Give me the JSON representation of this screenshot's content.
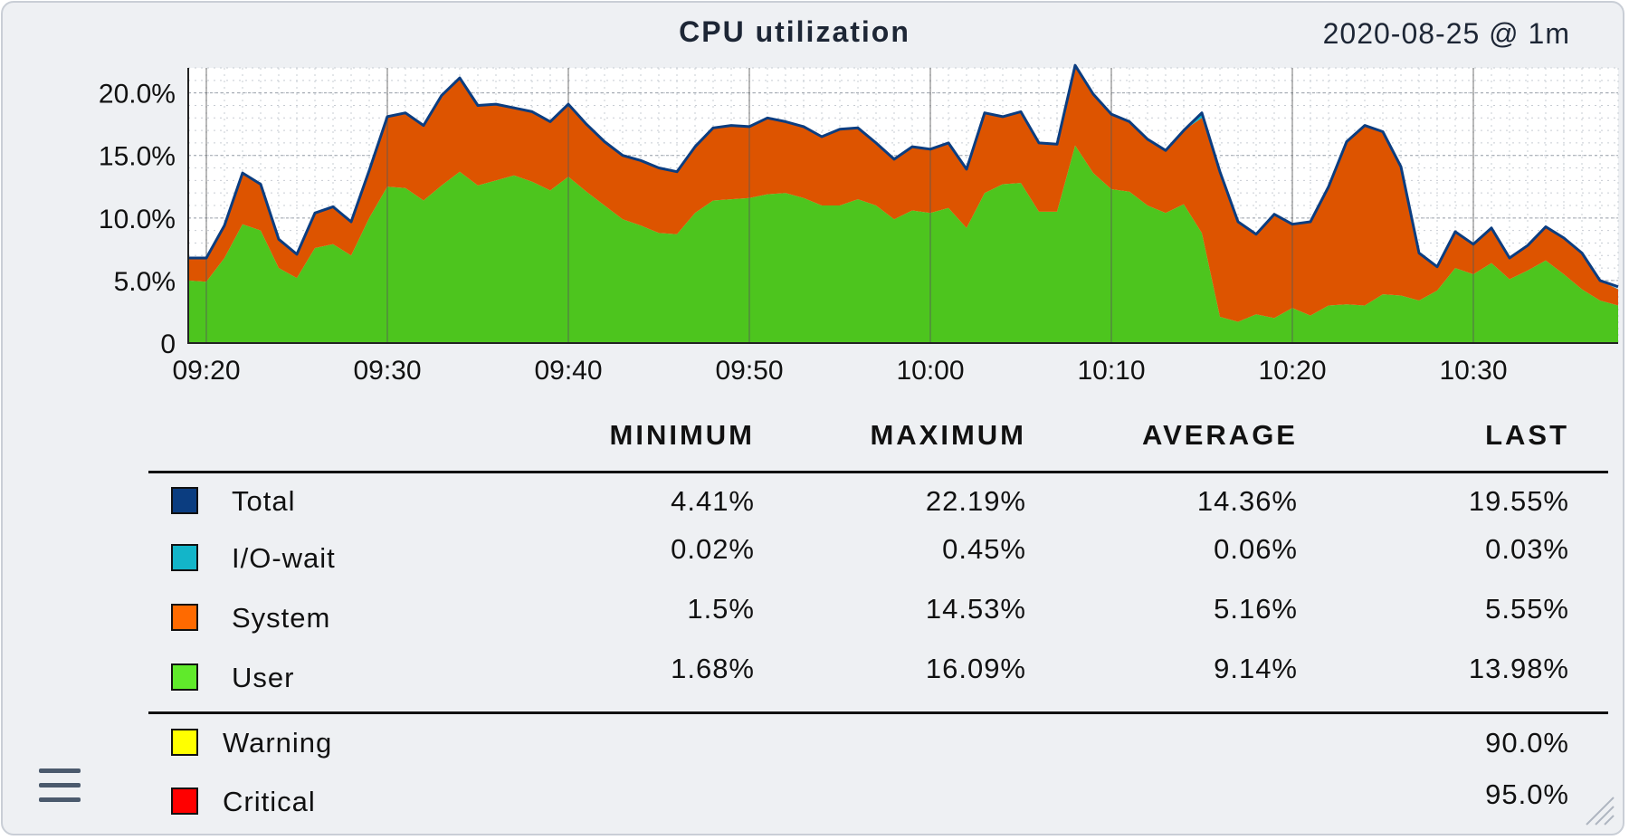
{
  "title": "CPU utilization",
  "timestamp": "2020-08-25 @ 1m",
  "legend": {
    "headers": [
      "MINIMUM",
      "MAXIMUM",
      "AVERAGE",
      "LAST"
    ],
    "rows": [
      {
        "label": "Total",
        "color": "#0b3d80",
        "min": "4.41%",
        "max": "22.19%",
        "avg": "14.36%",
        "last": "19.55%"
      },
      {
        "label": "I/O-wait",
        "color": "#13b5c9",
        "min": "0.02%",
        "max": "0.45%",
        "avg": "0.06%",
        "last": "0.03%"
      },
      {
        "label": "System",
        "color": "#ff6a00",
        "min": "1.5%",
        "max": "14.53%",
        "avg": "5.16%",
        "last": "5.55%"
      },
      {
        "label": "User",
        "color": "#60ea2b",
        "min": "1.68%",
        "max": "16.09%",
        "avg": "9.14%",
        "last": "13.98%"
      }
    ],
    "thresholds": [
      {
        "label": "Warning",
        "color": "#ffff00",
        "value": "90.0%"
      },
      {
        "label": "Critical",
        "color": "#ff0000",
        "value": "95.0%"
      }
    ]
  },
  "chart_data": {
    "type": "area",
    "stacked": true,
    "xlim": [
      -1,
      78
    ],
    "ylim": [
      0,
      22
    ],
    "x_ticks": [
      {
        "x": 0,
        "label": "09:20"
      },
      {
        "x": 10,
        "label": "09:30"
      },
      {
        "x": 20,
        "label": "09:40"
      },
      {
        "x": 30,
        "label": "09:50"
      },
      {
        "x": 40,
        "label": "10:00"
      },
      {
        "x": 50,
        "label": "10:10"
      },
      {
        "x": 60,
        "label": "10:20"
      },
      {
        "x": 70,
        "label": "10:30"
      }
    ],
    "y_ticks": [
      {
        "y": 0,
        "label": "0"
      },
      {
        "y": 5,
        "label": "5.0%"
      },
      {
        "y": 10,
        "label": "10.0%"
      },
      {
        "y": 15,
        "label": "15.0%"
      },
      {
        "y": 20,
        "label": "20.0%"
      }
    ],
    "x": [
      -1,
      0,
      1,
      2,
      3,
      4,
      5,
      6,
      7,
      8,
      9,
      10,
      11,
      12,
      13,
      14,
      15,
      16,
      17,
      18,
      19,
      20,
      21,
      22,
      23,
      24,
      25,
      26,
      27,
      28,
      29,
      30,
      31,
      32,
      33,
      34,
      35,
      36,
      37,
      38,
      39,
      40,
      41,
      42,
      43,
      44,
      45,
      46,
      47,
      48,
      49,
      50,
      51,
      52,
      53,
      54,
      55,
      56,
      57,
      58,
      59,
      60,
      61,
      62,
      63,
      64,
      65,
      66,
      67,
      68,
      69,
      70,
      71,
      72,
      73,
      74,
      75,
      76,
      77,
      78
    ],
    "series": [
      {
        "name": "User",
        "color": "#4dc51e",
        "values": [
          5.0,
          4.9,
          6.8,
          9.5,
          9.0,
          6.0,
          5.2,
          7.6,
          7.9,
          7.0,
          10.0,
          12.5,
          12.4,
          11.4,
          12.6,
          13.7,
          12.6,
          13.0,
          13.4,
          12.9,
          12.2,
          13.3,
          12.1,
          11.0,
          9.9,
          9.4,
          8.8,
          8.7,
          10.4,
          11.4,
          11.5,
          11.6,
          11.9,
          12.0,
          11.6,
          11.0,
          11.0,
          11.5,
          11.0,
          9.9,
          10.6,
          10.4,
          10.8,
          9.2,
          12.0,
          12.7,
          12.8,
          10.5,
          10.5,
          15.8,
          13.6,
          12.3,
          12.1,
          11.0,
          10.4,
          11.1,
          8.8,
          2.1,
          1.7,
          2.3,
          2.0,
          2.8,
          2.2,
          3.0,
          3.1,
          3.0,
          3.9,
          3.8,
          3.4,
          4.2,
          6.0,
          5.5,
          6.4,
          5.1,
          5.8,
          6.6,
          5.5,
          4.3,
          3.4,
          3.0
        ]
      },
      {
        "name": "System",
        "color": "#dd5400",
        "values": [
          1.8,
          1.9,
          2.6,
          4.1,
          3.7,
          2.3,
          1.9,
          2.8,
          3.0,
          2.7,
          3.8,
          5.6,
          6.0,
          6.0,
          7.2,
          7.5,
          6.4,
          6.1,
          5.4,
          5.6,
          5.5,
          5.8,
          5.4,
          5.1,
          5.1,
          5.2,
          5.2,
          5.0,
          5.3,
          5.8,
          5.9,
          5.7,
          6.1,
          5.7,
          5.7,
          5.5,
          6.1,
          5.7,
          5.0,
          4.8,
          5.1,
          5.1,
          5.2,
          4.7,
          6.4,
          5.4,
          5.7,
          5.5,
          5.4,
          6.4,
          6.3,
          6.0,
          5.6,
          5.3,
          5.0,
          5.9,
          9.2,
          11.5,
          8.0,
          6.4,
          8.3,
          6.7,
          7.5,
          9.5,
          13.0,
          14.4,
          13.0,
          10.3,
          3.8,
          1.9,
          2.9,
          2.4,
          2.8,
          1.7,
          2.0,
          2.7,
          2.9,
          2.9,
          1.6,
          1.3
        ]
      },
      {
        "name": "I/O-wait",
        "color": "#13b5c9",
        "values": [
          0.03,
          0.03,
          0.03,
          0.03,
          0.03,
          0.03,
          0.03,
          0.03,
          0.03,
          0.03,
          0.03,
          0.03,
          0.03,
          0.03,
          0.03,
          0.03,
          0.03,
          0.03,
          0.03,
          0.03,
          0.03,
          0.03,
          0.03,
          0.03,
          0.03,
          0.03,
          0.03,
          0.03,
          0.03,
          0.03,
          0.03,
          0.03,
          0.03,
          0.03,
          0.03,
          0.03,
          0.03,
          0.03,
          0.03,
          0.03,
          0.03,
          0.03,
          0.03,
          0.03,
          0.03,
          0.03,
          0.03,
          0.03,
          0.03,
          0.03,
          0.03,
          0.03,
          0.03,
          0.03,
          0.03,
          0.03,
          0.45,
          0.2,
          0.03,
          0.03,
          0.03,
          0.03,
          0.03,
          0.03,
          0.03,
          0.03,
          0.03,
          0.03,
          0.03,
          0.03,
          0.03,
          0.03,
          0.03,
          0.03,
          0.03,
          0.03,
          0.03,
          0.03,
          0.03,
          0.03
        ]
      },
      {
        "name": "Total",
        "color": "#0b3d80",
        "values": [
          6.8,
          6.8,
          9.4,
          13.6,
          12.7,
          8.3,
          7.1,
          10.4,
          10.9,
          9.7,
          13.8,
          18.1,
          18.4,
          17.4,
          19.8,
          21.2,
          19.0,
          19.1,
          18.8,
          18.5,
          17.7,
          19.1,
          17.5,
          16.1,
          15.0,
          14.6,
          14.0,
          13.7,
          15.7,
          17.2,
          17.4,
          17.3,
          18.0,
          17.7,
          17.3,
          16.5,
          17.1,
          17.2,
          16.0,
          14.7,
          15.7,
          15.5,
          16.0,
          13.9,
          18.4,
          18.1,
          18.5,
          16.0,
          15.9,
          22.2,
          19.9,
          18.3,
          17.7,
          16.3,
          15.4,
          17.0,
          18.4,
          13.7,
          9.7,
          8.7,
          10.3,
          9.5,
          9.7,
          12.5,
          16.1,
          17.4,
          16.9,
          14.1,
          7.2,
          6.1,
          8.9,
          7.9,
          9.2,
          6.8,
          7.8,
          9.3,
          8.4,
          7.2,
          5.0,
          4.5
        ]
      }
    ]
  }
}
